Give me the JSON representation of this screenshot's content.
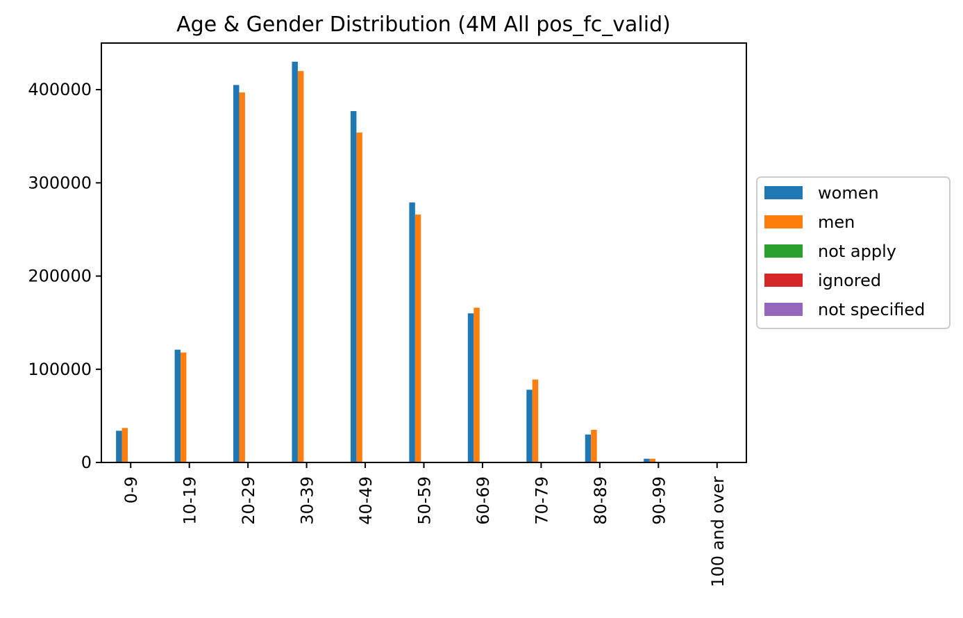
{
  "chart_data": {
    "type": "bar",
    "title": "Age & Gender Distribution (4M All pos_fc_valid)",
    "xlabel": "",
    "ylabel": "",
    "categories": [
      "0-9",
      "10-19",
      "20-29",
      "30-39",
      "40-49",
      "50-59",
      "60-69",
      "70-79",
      "80-89",
      "90-99",
      "100 and over"
    ],
    "ylim": [
      0,
      450000
    ],
    "yticks": [
      0,
      100000,
      200000,
      300000,
      400000
    ],
    "series": [
      {
        "name": "women",
        "color": "#1f77b4",
        "values": [
          34000,
          121000,
          405000,
          430000,
          377000,
          279000,
          160000,
          78000,
          30000,
          4000,
          0
        ]
      },
      {
        "name": "men",
        "color": "#ff7f0e",
        "values": [
          37000,
          118000,
          397000,
          420000,
          354000,
          266000,
          166000,
          89000,
          35000,
          4000,
          0
        ]
      },
      {
        "name": "not apply",
        "color": "#2ca02c",
        "values": [
          0,
          0,
          0,
          0,
          0,
          0,
          0,
          0,
          0,
          0,
          0
        ]
      },
      {
        "name": "ignored",
        "color": "#d62728",
        "values": [
          0,
          0,
          0,
          0,
          0,
          0,
          0,
          0,
          0,
          0,
          0
        ]
      },
      {
        "name": "not specified",
        "color": "#9467bd",
        "values": [
          0,
          0,
          0,
          0,
          0,
          0,
          0,
          0,
          0,
          0,
          0
        ]
      }
    ],
    "legend_position": "right",
    "grid": false
  }
}
